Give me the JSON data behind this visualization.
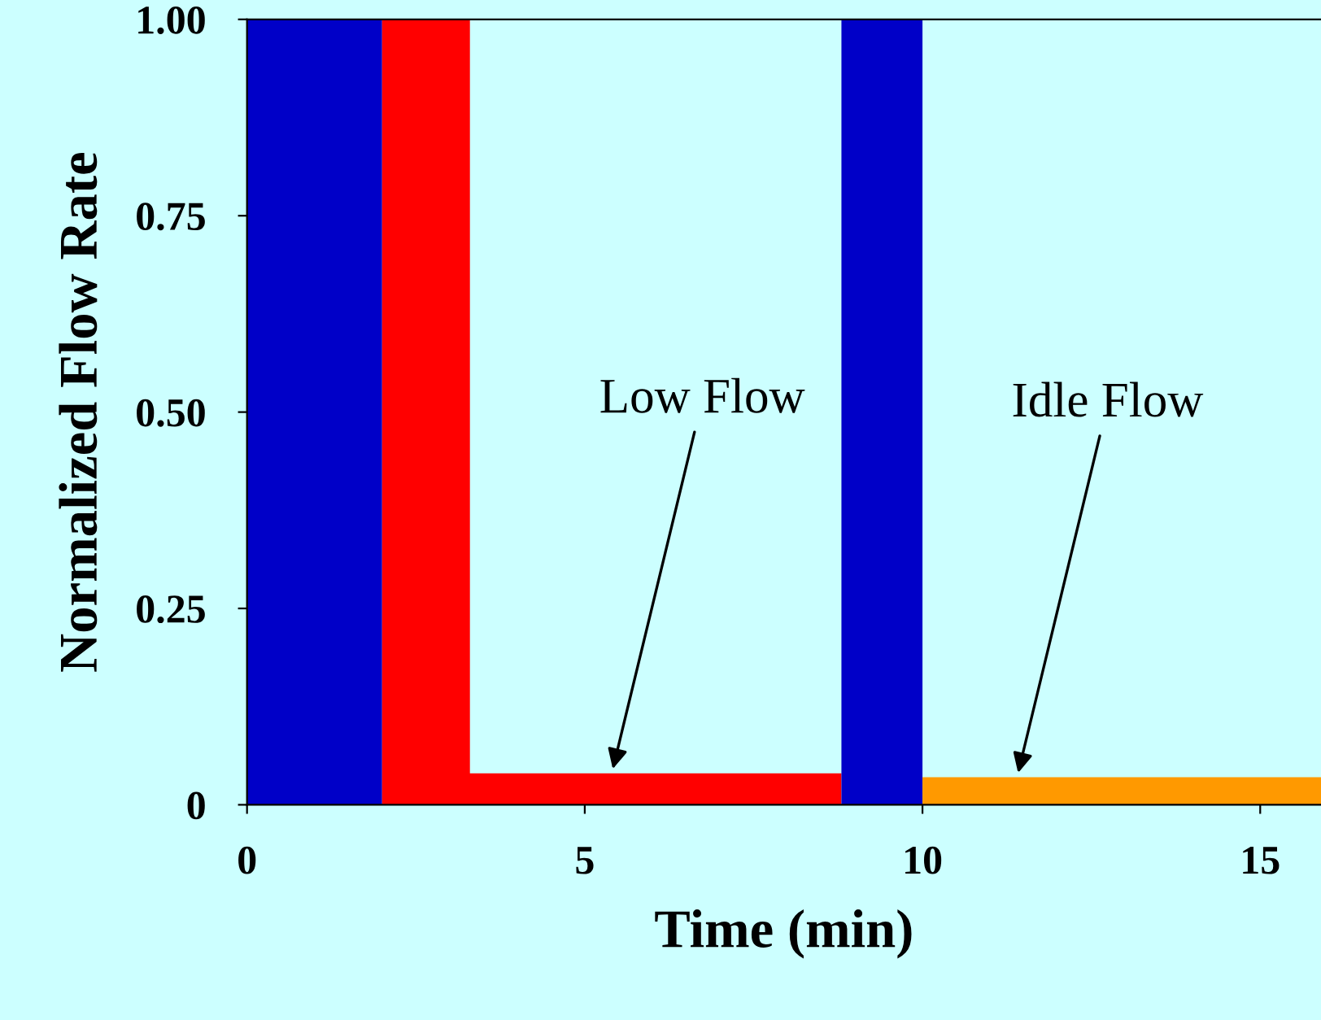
{
  "chart_data": {
    "type": "area",
    "xlabel": "Time (min)",
    "ylabel": "Normalized Flow Rate",
    "series": [
      {
        "color": "#0000c8",
        "x": [
          0,
          2.0
        ],
        "values": [
          1,
          1
        ]
      },
      {
        "color": "#ff0000",
        "x": [
          2.0,
          3.3,
          3.3,
          8.8
        ],
        "values": [
          1,
          1,
          0.04,
          0.04
        ]
      },
      {
        "color": "#0000c8",
        "x": [
          8.8,
          10
        ],
        "values": [
          1,
          1
        ]
      },
      {
        "color": "#ff9900",
        "x": [
          10,
          15.9
        ],
        "values": [
          0.035,
          0.035
        ]
      }
    ],
    "annotations": [
      {
        "text": "Low Flow",
        "x": 5.4,
        "y": 0.04
      },
      {
        "text": "Idle Flow",
        "x": 11.4,
        "y": 0.035
      }
    ],
    "xlim": [
      0,
      15.9
    ],
    "ylim": [
      0,
      1
    ],
    "xticks": [
      0,
      5,
      10,
      15
    ],
    "yticks": [
      0,
      {
        "value": 0.25,
        "label": "0.25"
      },
      {
        "value": 0.5,
        "label": "0.50"
      },
      {
        "value": 0.75,
        "label": "0.75"
      },
      {
        "value": 1,
        "label": "1.00"
      }
    ],
    "grid": false,
    "legend": false
  }
}
